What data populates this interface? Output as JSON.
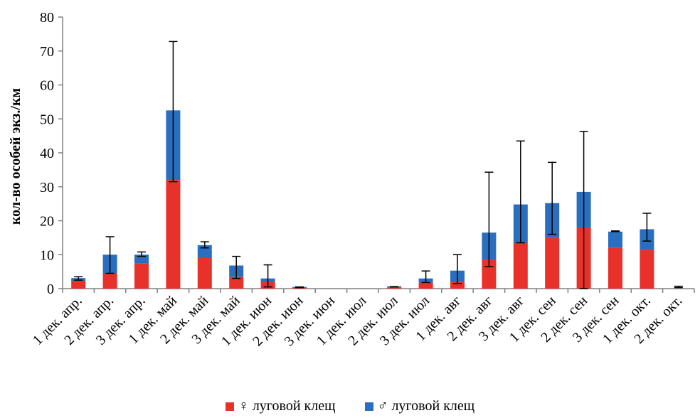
{
  "chart_data": {
    "type": "bar",
    "stacked": true,
    "ylabel": "кол-во особей экз./км",
    "ylim": [
      0,
      80
    ],
    "yticks": [
      "0",
      "10",
      "20",
      "30",
      "40",
      "50",
      "60",
      "70",
      "80"
    ],
    "categories": [
      "1 дек. апр.",
      "2 дек. апр.",
      "3 дек. апр.",
      "1 дек. май",
      "2 дек. май",
      "3 дек. май",
      "1 дек. июн",
      "2 дек. июн",
      "3 дек. июн",
      "1 дек. июл",
      "2 дек. июл",
      "3 дек. июл",
      "1 дек. авг",
      "2 дек. авг",
      "3 дек. авг",
      "1 дек. сен",
      "2 дек. сен",
      "3 дек. сен",
      "1 дек. окт.",
      "2 дек. окт."
    ],
    "series": [
      {
        "name": "♀ луговой клещ",
        "color": "#e8312b",
        "values": [
          2.3,
          4.5,
          7.5,
          32,
          9,
          3.5,
          2,
          0.2,
          0,
          0,
          0.5,
          1.8,
          2,
          8.5,
          13.5,
          15,
          18,
          12,
          11.5,
          0
        ]
      },
      {
        "name": "♂ луговой клещ",
        "color": "#2a6ebf",
        "values": [
          0.8,
          5.5,
          2.5,
          20.5,
          3.8,
          3.3,
          1,
          0.3,
          0,
          0,
          0.2,
          1.2,
          3.3,
          8,
          11.3,
          10.2,
          10.5,
          4.8,
          6,
          0
        ]
      }
    ],
    "error_bar_tops": [
      3.5,
      15.3,
      10.8,
      72.8,
      13.8,
      9.5,
      7,
      0.5,
      null,
      null,
      0.6,
      5.2,
      10,
      34.3,
      43.5,
      37.2,
      46.3,
      17,
      22.2,
      0.7
    ],
    "error_bar_bottoms": [
      2.5,
      4.5,
      9.5,
      31.5,
      12,
      3,
      0.5,
      0.3,
      null,
      null,
      0.5,
      1.8,
      1.5,
      6.5,
      13.5,
      16,
      0,
      16.8,
      14,
      0.3
    ],
    "grid": false,
    "legend_position": "bottom"
  }
}
